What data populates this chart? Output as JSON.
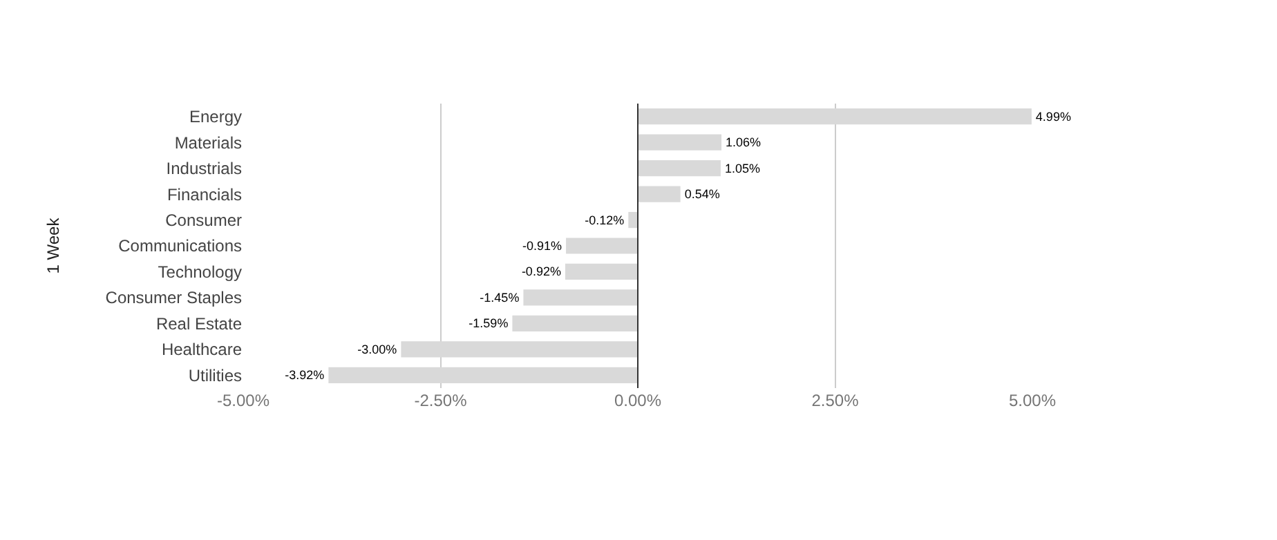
{
  "chart_data": {
    "type": "bar",
    "orientation": "horizontal",
    "ylabel": "1 Week",
    "categories": [
      "Energy",
      "Materials",
      "Industrials",
      "Financials",
      "Consumer",
      "Communications",
      "Technology",
      "Consumer Staples",
      "Real Estate",
      "Healthcare",
      "Utilities"
    ],
    "values": [
      4.99,
      1.06,
      1.05,
      0.54,
      -0.12,
      -0.91,
      -0.92,
      -1.45,
      -1.59,
      -3.0,
      -3.92
    ],
    "value_labels": [
      "4.99%",
      "1.06%",
      "1.05%",
      "0.54%",
      "-0.12%",
      "-0.91%",
      "-0.92%",
      "-1.45%",
      "-1.59%",
      "-3.00%",
      "-3.92%"
    ],
    "color": "#d9d9d9",
    "xlim": [
      -5,
      5
    ],
    "xticks": [
      {
        "value": -5,
        "label": "-5.00%"
      },
      {
        "value": -2.5,
        "label": "-2.50%"
      },
      {
        "value": 0,
        "label": "0.00%"
      },
      {
        "value": 2.5,
        "label": "2.50%"
      },
      {
        "value": 5,
        "label": "5.00%"
      }
    ],
    "grid": "x"
  }
}
